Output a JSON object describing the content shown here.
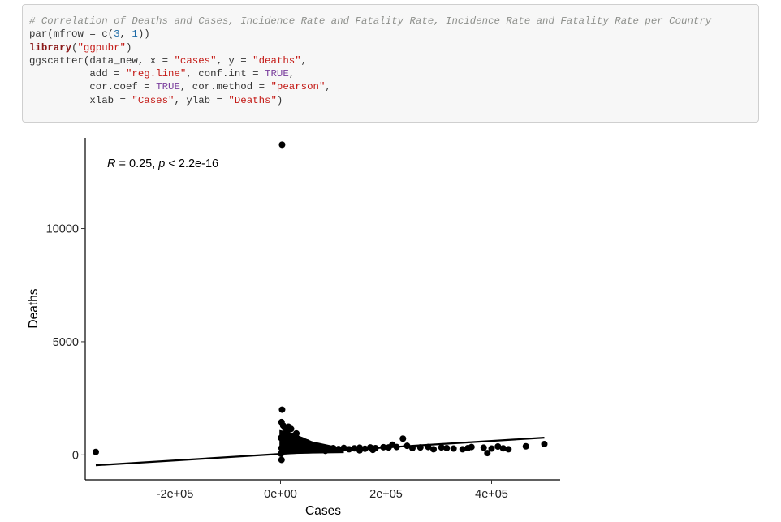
{
  "code": {
    "lines": [
      [
        {
          "t": "# Correlation of Deaths and Cases, Incidence Rate and Fatality Rate, Incidence Rate and Fatality Rate per Country",
          "c": "comment"
        }
      ],
      [
        {
          "t": "par(mfrow = c("
        },
        {
          "t": "3",
          "c": "number"
        },
        {
          "t": ", "
        },
        {
          "t": "1",
          "c": "number"
        },
        {
          "t": "))"
        }
      ],
      [
        {
          "t": "library",
          "c": "keyword"
        },
        {
          "t": "("
        },
        {
          "t": "\"ggpubr\"",
          "c": "string"
        },
        {
          "t": ")"
        }
      ],
      [
        {
          "t": "ggscatter(data_new, x = "
        },
        {
          "t": "\"cases\"",
          "c": "string"
        },
        {
          "t": ", y = "
        },
        {
          "t": "\"deaths\"",
          "c": "string"
        },
        {
          "t": ","
        }
      ],
      [
        {
          "t": "          add = "
        },
        {
          "t": "\"reg.line\"",
          "c": "string"
        },
        {
          "t": ", conf.int = "
        },
        {
          "t": "TRUE",
          "c": "const"
        },
        {
          "t": ","
        }
      ],
      [
        {
          "t": "          cor.coef = "
        },
        {
          "t": "TRUE",
          "c": "const"
        },
        {
          "t": ", cor.method = "
        },
        {
          "t": "\"pearson\"",
          "c": "string"
        },
        {
          "t": ","
        }
      ],
      [
        {
          "t": "          xlab = "
        },
        {
          "t": "\"Cases\"",
          "c": "string"
        },
        {
          "t": ", ylab = "
        },
        {
          "t": "\"Deaths\"",
          "c": "string"
        },
        {
          "t": ")"
        }
      ]
    ]
  },
  "chart_data": {
    "type": "scatter",
    "xlabel": "Cases",
    "ylabel": "Deaths",
    "xlim": [
      -370000,
      530000
    ],
    "ylim": [
      -1100,
      14000
    ],
    "x_ticks": [
      -200000,
      0,
      200000,
      400000
    ],
    "x_tick_labels": [
      "-2e+05",
      "0e+00",
      "2e+05",
      "4e+05"
    ],
    "y_ticks": [
      0,
      5000,
      10000
    ],
    "y_tick_labels": [
      "0",
      "5000",
      "10000"
    ],
    "annotation": {
      "R": "R",
      "text": " = 0.25, ",
      "p": "p",
      "ptext": " < 2.2e-16"
    },
    "regression_line": {
      "x": [
        -350000,
        500000
      ],
      "y": [
        -460,
        760
      ]
    },
    "points": [
      {
        "x": -350000,
        "y": 130
      },
      {
        "x": 3000,
        "y": 13700
      },
      {
        "x": 3000,
        "y": 2000
      },
      {
        "x": 2000,
        "y": 1450
      },
      {
        "x": 5000,
        "y": 1300
      },
      {
        "x": 8000,
        "y": 1200
      },
      {
        "x": 15000,
        "y": 1250
      },
      {
        "x": 20000,
        "y": 1150
      },
      {
        "x": 12000,
        "y": 1050
      },
      {
        "x": 30000,
        "y": 950
      },
      {
        "x": 25000,
        "y": 850
      },
      {
        "x": 6000,
        "y": 900
      },
      {
        "x": 1000,
        "y": 750
      },
      {
        "x": 40000,
        "y": 650
      },
      {
        "x": 50000,
        "y": 550
      },
      {
        "x": 18000,
        "y": 700
      },
      {
        "x": 35000,
        "y": 600
      },
      {
        "x": 60000,
        "y": 450
      },
      {
        "x": 70000,
        "y": 380
      },
      {
        "x": 80000,
        "y": 330
      },
      {
        "x": 10000,
        "y": 500
      },
      {
        "x": 2000,
        "y": 300
      },
      {
        "x": 4000,
        "y": 150
      },
      {
        "x": 1000,
        "y": 50
      },
      {
        "x": 2000,
        "y": -220
      },
      {
        "x": 45000,
        "y": 400
      },
      {
        "x": 55000,
        "y": 300
      },
      {
        "x": 90000,
        "y": 280
      },
      {
        "x": 100000,
        "y": 300
      },
      {
        "x": 110000,
        "y": 260
      },
      {
        "x": 120000,
        "y": 310
      },
      {
        "x": 130000,
        "y": 250
      },
      {
        "x": 140000,
        "y": 290
      },
      {
        "x": 150000,
        "y": 320
      },
      {
        "x": 160000,
        "y": 270
      },
      {
        "x": 170000,
        "y": 330
      },
      {
        "x": 180000,
        "y": 300
      },
      {
        "x": 195000,
        "y": 340
      },
      {
        "x": 205000,
        "y": 330
      },
      {
        "x": 212000,
        "y": 450
      },
      {
        "x": 220000,
        "y": 350
      },
      {
        "x": 232000,
        "y": 720
      },
      {
        "x": 240000,
        "y": 400
      },
      {
        "x": 250000,
        "y": 300
      },
      {
        "x": 265000,
        "y": 330
      },
      {
        "x": 280000,
        "y": 350
      },
      {
        "x": 290000,
        "y": 250
      },
      {
        "x": 305000,
        "y": 330
      },
      {
        "x": 315000,
        "y": 300
      },
      {
        "x": 328000,
        "y": 280
      },
      {
        "x": 345000,
        "y": 250
      },
      {
        "x": 355000,
        "y": 300
      },
      {
        "x": 362000,
        "y": 350
      },
      {
        "x": 385000,
        "y": 320
      },
      {
        "x": 392000,
        "y": 80
      },
      {
        "x": 400000,
        "y": 280
      },
      {
        "x": 412000,
        "y": 370
      },
      {
        "x": 422000,
        "y": 290
      },
      {
        "x": 432000,
        "y": 250
      },
      {
        "x": 465000,
        "y": 380
      },
      {
        "x": 500000,
        "y": 480
      },
      {
        "x": 150000,
        "y": 200
      },
      {
        "x": 175000,
        "y": 220
      },
      {
        "x": 85000,
        "y": 180
      },
      {
        "x": 65000,
        "y": 220
      },
      {
        "x": 75000,
        "y": 250
      }
    ]
  }
}
